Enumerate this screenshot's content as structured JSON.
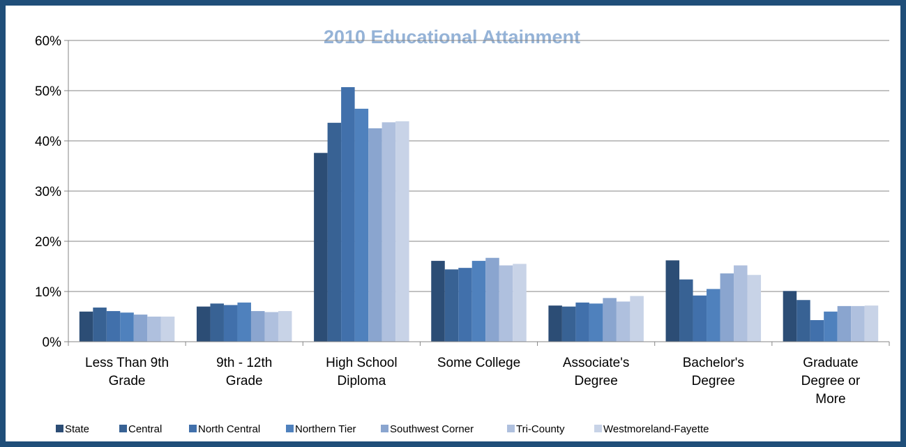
{
  "colors": {
    "title": "#95b3d7",
    "frame": "#1f4e79",
    "grid": "#868686",
    "axis": "#868686"
  },
  "chart_data": {
    "type": "bar",
    "title": "2010 Educational Attainment",
    "xlabel": "",
    "ylabel": "",
    "ylim": [
      0,
      0.6
    ],
    "y_ticks": [
      0,
      0.1,
      0.2,
      0.3,
      0.4,
      0.5,
      0.6
    ],
    "y_tick_labels": [
      "0%",
      "10%",
      "20%",
      "30%",
      "40%",
      "50%",
      "60%"
    ],
    "grid": true,
    "legend_position": "bottom",
    "categories": [
      [
        "Less Than 9th",
        "Grade"
      ],
      [
        "9th - 12th",
        "Grade"
      ],
      [
        "High School",
        "Diploma"
      ],
      [
        "Some College"
      ],
      [
        "Associate's",
        "Degree"
      ],
      [
        "Bachelor's",
        "Degree"
      ],
      [
        "Graduate",
        "Degree or",
        "More"
      ]
    ],
    "series": [
      {
        "name": "State",
        "color": "#2c4d75",
        "values": [
          0.06,
          0.07,
          0.376,
          0.161,
          0.072,
          0.162,
          0.101
        ]
      },
      {
        "name": "Central",
        "color": "#386294",
        "values": [
          0.068,
          0.076,
          0.436,
          0.144,
          0.07,
          0.124,
          0.083
        ]
      },
      {
        "name": "North Central",
        "color": "#4170ab",
        "values": [
          0.061,
          0.073,
          0.507,
          0.147,
          0.078,
          0.092,
          0.043
        ]
      },
      {
        "name": "Northern Tier",
        "color": "#4f81bd",
        "values": [
          0.058,
          0.078,
          0.464,
          0.161,
          0.076,
          0.105,
          0.06
        ]
      },
      {
        "name": "Southwest Corner",
        "color": "#8aa5cf",
        "values": [
          0.054,
          0.061,
          0.425,
          0.167,
          0.087,
          0.136,
          0.071
        ]
      },
      {
        "name": "Tri-County",
        "color": "#afc0de",
        "values": [
          0.05,
          0.059,
          0.437,
          0.152,
          0.08,
          0.152,
          0.071
        ]
      },
      {
        "name": "Westmoreland-Fayette",
        "color": "#c8d3e7",
        "values": [
          0.05,
          0.061,
          0.439,
          0.155,
          0.091,
          0.133,
          0.072
        ]
      }
    ]
  }
}
